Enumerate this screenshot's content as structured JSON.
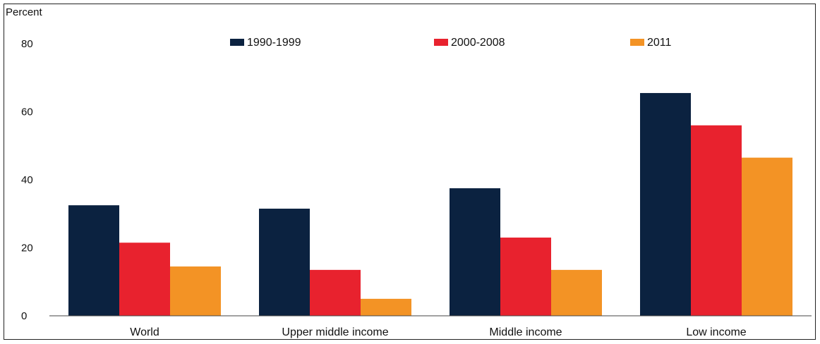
{
  "chart_data": {
    "type": "bar",
    "ylabel": "Percent",
    "categories": [
      "World",
      "Upper middle income",
      "Middle income",
      "Low income"
    ],
    "series": [
      {
        "name": "1990-1999",
        "color": "#0b2240",
        "values": [
          32.5,
          31.5,
          37.5,
          65.5
        ]
      },
      {
        "name": "2000-2008",
        "color": "#e8222e",
        "values": [
          21.5,
          13.5,
          23,
          56
        ]
      },
      {
        "name": "2011",
        "color": "#f39325",
        "values": [
          14.5,
          5,
          13.5,
          46.5
        ]
      }
    ],
    "yticks": [
      0,
      20,
      40,
      60,
      80
    ],
    "ylim": [
      0,
      80
    ],
    "legend_position": "top"
  }
}
